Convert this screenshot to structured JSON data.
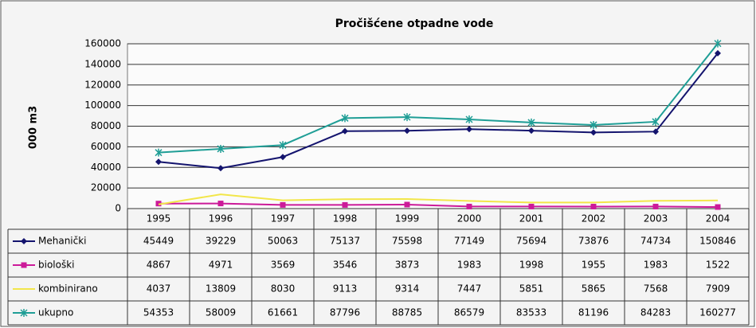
{
  "chart_data": {
    "type": "line",
    "title": "Pročišćene otpadne vode",
    "y_label": "000 m3",
    "categories": [
      "1995",
      "1996",
      "1997",
      "1998",
      "1999",
      "2000",
      "2001",
      "2002",
      "2003",
      "2004"
    ],
    "series": [
      {
        "name": "Mehanički",
        "color": "#14146e",
        "values": [
          45449,
          39229,
          50063,
          75137,
          75598,
          77149,
          75694,
          73876,
          74734,
          150846
        ]
      },
      {
        "name": "biološki",
        "color": "#cc1a99",
        "values": [
          4867,
          4971,
          3569,
          3546,
          3873,
          1983,
          1998,
          1955,
          1983,
          1522
        ]
      },
      {
        "name": "kombinirano",
        "color": "#f2e64a",
        "values": [
          4037,
          13809,
          8030,
          9113,
          9314,
          7447,
          5851,
          5865,
          7568,
          7909
        ]
      },
      {
        "name": "ukupno",
        "color": "#1f9e96",
        "values": [
          54353,
          58009,
          61661,
          87796,
          88785,
          86579,
          83533,
          81196,
          84283,
          160277
        ]
      }
    ],
    "ylim": [
      0,
      160000
    ],
    "yticks": [
      0,
      20000,
      40000,
      60000,
      80000,
      100000,
      120000,
      140000,
      160000
    ],
    "grid": true
  }
}
